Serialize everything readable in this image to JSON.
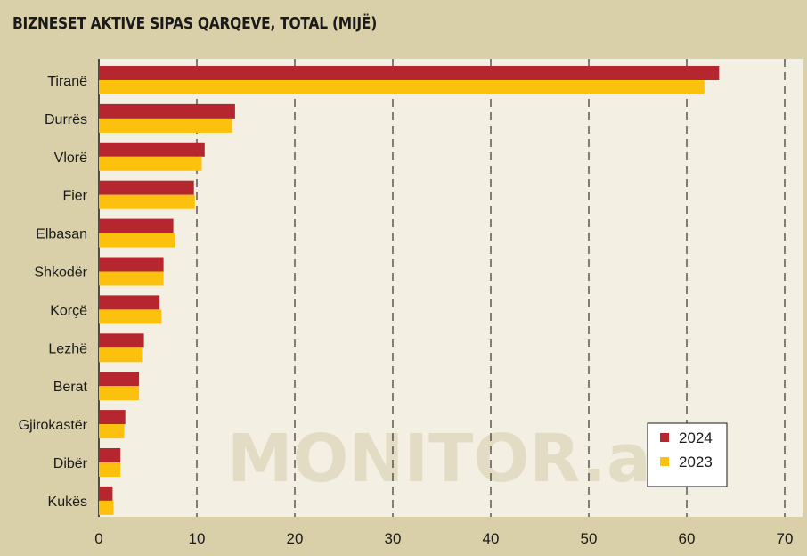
{
  "chart_data": {
    "type": "bar",
    "orientation": "horizontal",
    "title": "BIZNESET AKTIVE SIPAS QARQEVE, TOTAL (MIJË)",
    "categories": [
      "Tiranë",
      "Durrës",
      "Vlorë",
      "Fier",
      "Elbasan",
      "Shkodër",
      "Korçë",
      "Lezhë",
      "Berat",
      "Gjirokastër",
      "Dibër",
      "Kukës"
    ],
    "series": [
      {
        "name": "2024",
        "color": "#b5262e",
        "values": [
          63.3,
          13.9,
          10.8,
          9.7,
          7.6,
          6.6,
          6.2,
          4.6,
          4.1,
          2.7,
          2.2,
          1.4
        ]
      },
      {
        "name": "2023",
        "color": "#fcc10d",
        "values": [
          61.8,
          13.6,
          10.5,
          9.8,
          7.8,
          6.6,
          6.4,
          4.4,
          4.1,
          2.6,
          2.2,
          1.5
        ]
      }
    ],
    "xlim": [
      0,
      70
    ],
    "xticks": [
      "0",
      "10",
      "20",
      "30",
      "40",
      "50",
      "60",
      "70"
    ],
    "grid": "vertical dashed",
    "legend_position": "bottom-right",
    "watermark": "MONITOR.al",
    "colors": {
      "background": "#d9cfa8",
      "plot_background": "#f3efe2"
    }
  }
}
